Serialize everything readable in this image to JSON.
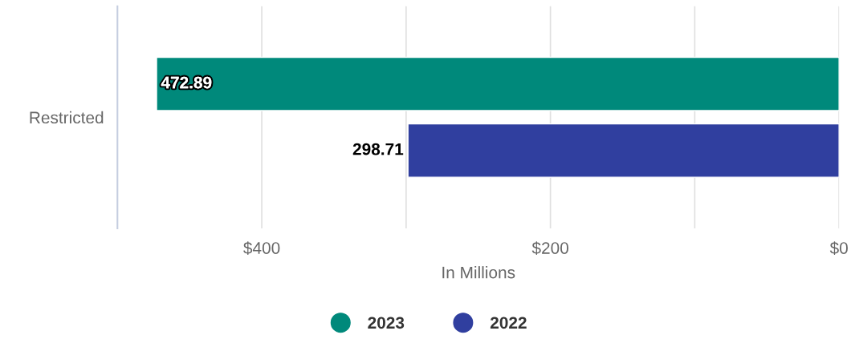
{
  "chart_data": {
    "type": "bar",
    "orientation": "horizontal",
    "categories": [
      "Restricted"
    ],
    "series": [
      {
        "name": "2023",
        "color": "#00897b",
        "values": [
          472.89
        ]
      },
      {
        "name": "2022",
        "color": "#303f9f",
        "values": [
          298.71
        ]
      }
    ],
    "xlim": [
      500,
      0
    ],
    "xticks": [
      {
        "value": 400,
        "label": "$400"
      },
      {
        "value": 300,
        "label": null
      },
      {
        "value": 200,
        "label": "$200"
      },
      {
        "value": 100,
        "label": null
      },
      {
        "value": 0,
        "label": "$0"
      }
    ],
    "xlabel": "In Millions",
    "grid": "x",
    "legend": "bottom",
    "data_labels": true
  }
}
